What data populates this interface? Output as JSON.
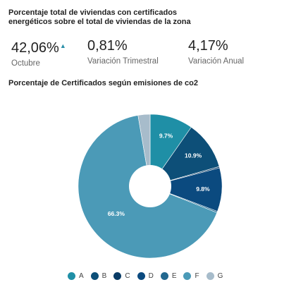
{
  "header": {
    "title": "Porcentaje total de viviendas con certificados energéticos sobre el total de viviendas de la zona"
  },
  "kpis": [
    {
      "value": "42,06%",
      "label": "Octubre",
      "trend_icon": "caret-up-icon",
      "trend_glyph": "▲"
    },
    {
      "value": "0,81%",
      "label": "Variación Trimestral"
    },
    {
      "value": "4,17%",
      "label": "Variación Anual"
    }
  ],
  "section": {
    "title": "Porcentaje de Certificados según emisiones de co2"
  },
  "chart_data": {
    "type": "pie",
    "donut": true,
    "title": "Porcentaje de Certificados según emisiones de co2",
    "categories": [
      "A",
      "B",
      "C",
      "D",
      "E",
      "F",
      "G"
    ],
    "values": [
      9.7,
      10.9,
      0.3,
      9.8,
      0.3,
      66.3,
      2.7
    ],
    "labels": [
      "9.7%",
      "10.9%",
      "",
      "9.8%",
      "",
      "66.3%",
      ""
    ],
    "colors": [
      "#1f8fa6",
      "#0d4f78",
      "#0a3c66",
      "#0b4a7f",
      "#23688f",
      "#4b9ab7",
      "#a7bccb"
    ],
    "legend_position": "bottom"
  }
}
